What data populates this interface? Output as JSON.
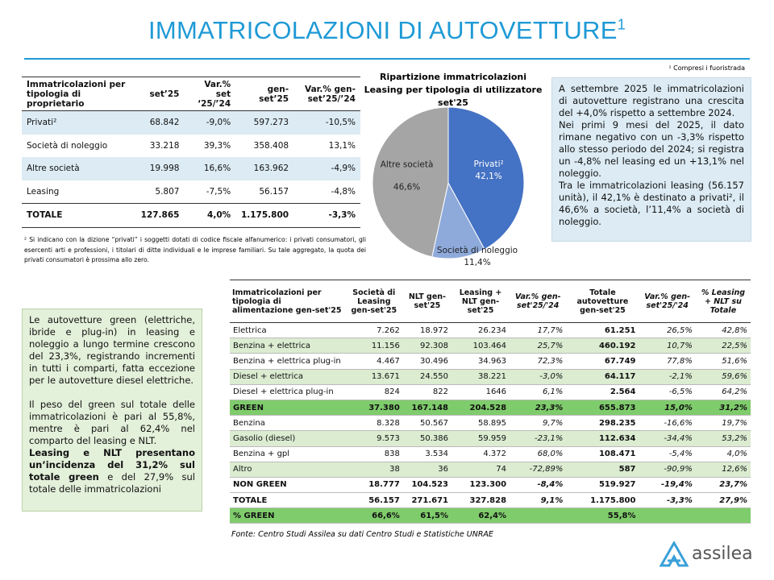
{
  "header": {
    "title": "IMMATRICOLAZIONI DI AUTOVETTURE",
    "title_sup": "1",
    "note": "¹ Compresi i fuoristrada"
  },
  "table1": {
    "columns": [
      "Immatricolazioni per tipologia di proprietario",
      "set’25",
      "Var.% set ‘25/’24",
      "gen-set’25",
      "Var.% gen-set’25/’24"
    ],
    "rows": [
      [
        "Privati²",
        "68.842",
        "-9,0%",
        "597.273",
        "-10,5%"
      ],
      [
        "Società di noleggio",
        "33.218",
        "39,3%",
        "358.408",
        "13,1%"
      ],
      [
        "Altre società",
        "19.998",
        "16,6%",
        "163.962",
        "-4,9%"
      ],
      [
        "Leasing",
        "5.807",
        "-7,5%",
        "56.157",
        "-4,8%"
      ],
      [
        "TOTALE",
        "127.865",
        "4,0%",
        "1.175.800",
        "-3,3%"
      ]
    ],
    "footnote": "² Si indicano con la dizione “privati” i soggetti dotati di codice fiscale alfanumerico: i privati consumatori, gli esercenti arti e professioni, i titolari di ditte individuali e le imprese familiari. Su tale aggregato, la quota dei privati consumatori è prossima allo zero."
  },
  "pie": {
    "type": "pie",
    "title": "Ripartizione immatricolazioni Leasing per tipologia di utilizzatore set'25",
    "categories": [
      "Privati²",
      "Società di noleggio",
      "Altre società"
    ],
    "values": [
      42.1,
      11.4,
      46.6
    ],
    "value_labels": [
      "42,1%",
      "11,4%",
      "46,6%"
    ],
    "colors": [
      "#4472c4",
      "#8eaadb",
      "#a5a5a5"
    ]
  },
  "summary": {
    "paragraphs": [
      "A settembre 2025 le immatricolazioni di autovetture registrano una crescita del +4,0% rispetto a settembre 2024.",
      "Nei primi 9 mesi del 2025, il dato rimane negativo con un -3,3% rispetto allo stesso periodo del 2024; si registra un -4,8% nel leasing ed un +13,1% nel noleggio.",
      "Tra le immatricolazioni leasing (56.157 unità), il 42,1% è destinato a privati², il 46,6% a società, l’11,4% a società di noleggio."
    ]
  },
  "green_box": {
    "p1": "Le autovetture green (elettriche, ibride e plug-in) in leasing e noleggio a lungo termine crescono del 23,3%, registrando incrementi in tutti i comparti, fatta eccezione per le autovetture diesel elettriche.",
    "p2": "Il peso del green sul totale delle immatricolazioni è pari al 55,8%, mentre è pari al 62,4% nel comparto del leasing e NLT.",
    "p3_bold": "Leasing e NLT presentano un’incidenza del 31,2% sul totale green",
    "p3_rest": " e del 27,9% sul totale delle immatricolazioni"
  },
  "table2": {
    "columns": [
      "Immatricolazioni per tipologia di alimentazione gen-set'25",
      "Società di Leasing gen-set'25",
      "NLT gen-set'25",
      "Leasing + NLT gen-set'25",
      "Var.% gen-set'25/'24",
      "Totale autovetture gen-set'25",
      "Var.% gen-set'25/'24",
      "% Leasing + NLT su Totale"
    ],
    "rows": [
      [
        "Elettrica",
        "7.262",
        "18.972",
        "26.234",
        "17,7%",
        "61.251",
        "26,5%",
        "42,8%"
      ],
      [
        "Benzina + elettrica",
        "11.156",
        "92.308",
        "103.464",
        "25,7%",
        "460.192",
        "10,7%",
        "22,5%"
      ],
      [
        "Benzina + elettrica plug-in",
        "4.467",
        "30.496",
        "34.963",
        "72,3%",
        "67.749",
        "77,8%",
        "51,6%"
      ],
      [
        "Diesel + elettrica",
        "13.671",
        "24.550",
        "38.221",
        "-3,0%",
        "64.117",
        "-2,1%",
        "59,6%"
      ],
      [
        "Diesel + elettrica plug-in",
        "824",
        "822",
        "1646",
        "6,1%",
        "2.564",
        "-6,5%",
        "64,2%"
      ],
      [
        "GREEN",
        "37.380",
        "167.148",
        "204.528",
        "23,3%",
        "655.873",
        "15,0%",
        "31,2%"
      ],
      [
        "Benzina",
        "8.328",
        "50.567",
        "58.895",
        "9,7%",
        "298.235",
        "-16,6%",
        "19,7%"
      ],
      [
        "Gasolio (diesel)",
        "9.573",
        "50.386",
        "59.959",
        "-23,1%",
        "112.634",
        "-34,4%",
        "53,2%"
      ],
      [
        "Benzina + gpl",
        "838",
        "3.534",
        "4.372",
        "68,0%",
        "108.471",
        "-5,4%",
        "4,0%"
      ],
      [
        "Altro",
        "38",
        "36",
        "74",
        "-72,89%",
        "587",
        "-90,9%",
        "12,6%"
      ],
      [
        "NON GREEN",
        "18.777",
        "104.523",
        "123.300",
        "-8,4%",
        "519.927",
        "-19,4%",
        "23,7%"
      ],
      [
        "TOTALE",
        "56.157",
        "271.671",
        "327.828",
        "9,1%",
        "1.175.800",
        "-3,3%",
        "27,9%"
      ],
      [
        "% GREEN",
        "66,6%",
        "61,5%",
        "62,4%",
        null,
        "55,8%",
        null,
        null
      ]
    ],
    "source": "Fonte: Centro Studi Assilea su dati Centro Studi e Statistiche UNRAE"
  },
  "logo": "assilea"
}
